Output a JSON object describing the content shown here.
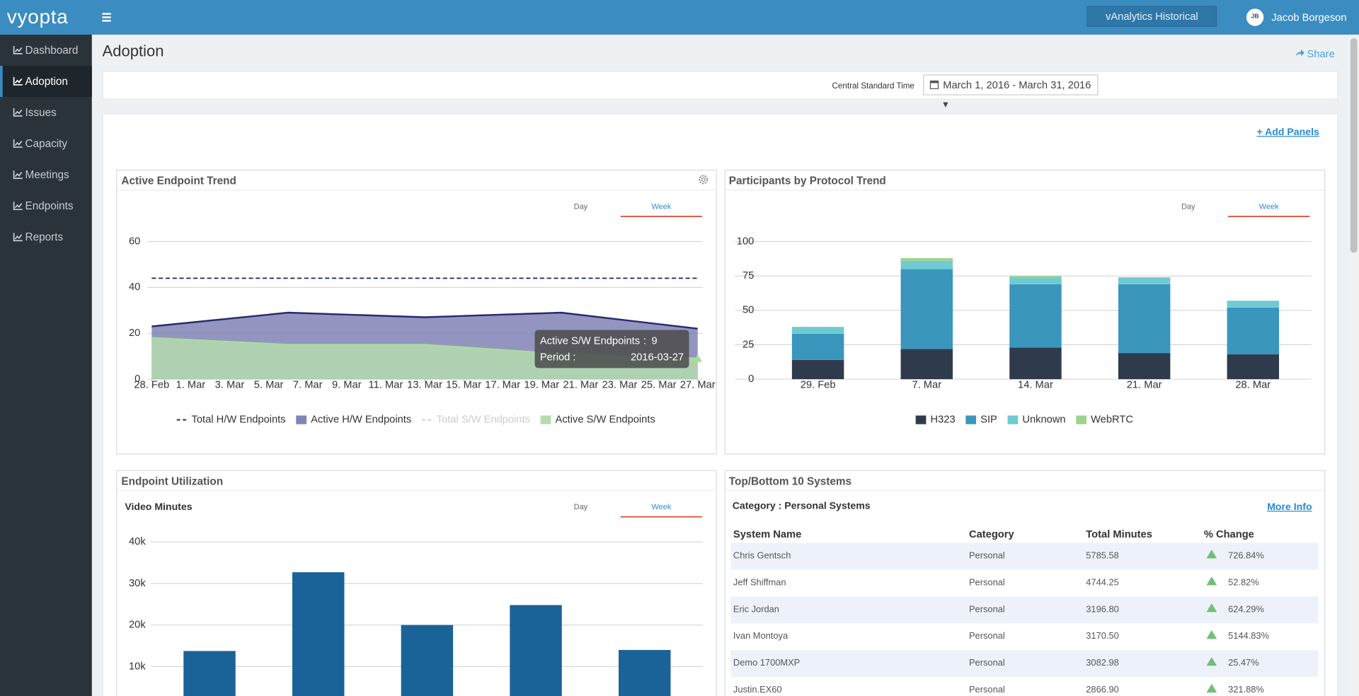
{
  "header": {
    "logo": "vyopta",
    "mode_button": "vAnalytics Historical",
    "user_initials": "JB",
    "user_name": "Jacob Borgeson"
  },
  "sidebar": {
    "items": [
      "Dashboard",
      "Adoption",
      "Issues",
      "Capacity",
      "Meetings",
      "Endpoints",
      "Reports"
    ],
    "active": 1
  },
  "page": {
    "title": "Adoption",
    "share": "Share",
    "timezone": "Central Standard Time",
    "date_range": "March 1, 2016 - March 31, 2016",
    "add_panels": "+ Add Panels"
  },
  "chart_data": [
    {
      "type": "area",
      "title": "Active Endpoint Trend",
      "tabs": [
        "Day",
        "Week"
      ],
      "active_tab": 1,
      "x": [
        "2016-02-28",
        "2016-03-06",
        "2016-03-13",
        "2016-03-20",
        "2016-03-27"
      ],
      "xlim": [
        "2016-02-28",
        "2016-03-27"
      ],
      "xticks": [
        {
          "value": "2016-02-28",
          "label": "28. Feb"
        },
        {
          "value": "2016-03-01",
          "label": "1. Mar"
        },
        {
          "value": "2016-03-03",
          "label": "3. Mar"
        },
        {
          "value": "2016-03-05",
          "label": "5. Mar"
        },
        {
          "value": "2016-03-07",
          "label": "7. Mar"
        },
        {
          "value": "2016-03-09",
          "label": "9. Mar"
        },
        {
          "value": "2016-03-11",
          "label": "11. Mar"
        },
        {
          "value": "2016-03-13",
          "label": "13. Mar"
        },
        {
          "value": "2016-03-15",
          "label": "15. Mar"
        },
        {
          "value": "2016-03-17",
          "label": "17. Mar"
        },
        {
          "value": "2016-03-19",
          "label": "19. Mar"
        },
        {
          "value": "2016-03-21",
          "label": "21. Mar"
        },
        {
          "value": "2016-03-23",
          "label": "23. Mar"
        },
        {
          "value": "2016-03-25",
          "label": "25. Mar"
        },
        {
          "value": "2016-03-27",
          "label": "27. Mar"
        }
      ],
      "ylim": [
        0,
        60
      ],
      "yticks": [
        0,
        20,
        40,
        60
      ],
      "grid": true,
      "series": [
        {
          "name": "Total H/W Endpoints",
          "color": "#1d2460",
          "style": "dashed",
          "values": [
            44,
            44,
            44,
            44,
            44
          ]
        },
        {
          "name": "Active H/W Endpoints",
          "color": "#8083b5",
          "line": "#262a6b",
          "style": "area",
          "values": [
            23,
            29,
            27,
            29,
            22
          ]
        },
        {
          "name": "Total S/W Endpoints",
          "color": "#cccccc",
          "style": "dashed",
          "hidden": true
        },
        {
          "name": "Active S/W Endpoints",
          "color": "#b5dcae",
          "line": "#a8dc9c",
          "style": "area",
          "values": [
            18,
            15,
            15,
            11,
            9
          ]
        }
      ],
      "tooltip": {
        "series": 3,
        "index": 4,
        "separator": ":",
        "period_label": "Period :"
      }
    },
    {
      "type": "stacked_bar",
      "title": "Participants by Protocol Trend",
      "tabs": [
        "Day",
        "Week"
      ],
      "active_tab": 1,
      "categories": [
        "29. Feb",
        "7. Mar",
        "14. Mar",
        "21. Mar",
        "28. Mar"
      ],
      "ylim": [
        0,
        100
      ],
      "yticks": [
        0,
        25,
        50,
        75,
        100
      ],
      "grid": true,
      "series": [
        {
          "name": "H323",
          "color": "#2f3b4c",
          "values": [
            14,
            22,
            23,
            19,
            18
          ]
        },
        {
          "name": "SIP",
          "color": "#3a96bd",
          "values": [
            19,
            58,
            46,
            50,
            34
          ]
        },
        {
          "name": "Unknown",
          "color": "#6fcbd1",
          "values": [
            5,
            6,
            5,
            5,
            5
          ]
        },
        {
          "name": "WebRTC",
          "color": "#9ed28e",
          "values": [
            0,
            2,
            1,
            0,
            0
          ]
        }
      ]
    },
    {
      "type": "bar",
      "title": "Endpoint Utilization",
      "subtitle": "Video Minutes",
      "tabs": [
        "Day",
        "Week"
      ],
      "active_tab": 1,
      "categories": [
        null,
        null,
        null,
        null,
        null
      ],
      "values": [
        13750,
        32700,
        20000,
        24800,
        14000
      ],
      "color": "#1a6398",
      "ylim": [
        0,
        40000
      ],
      "yticks": [
        {
          "value": 10000,
          "label": "10k"
        },
        {
          "value": 20000,
          "label": "20k"
        },
        {
          "value": 30000,
          "label": "30k"
        },
        {
          "value": 40000,
          "label": "40k"
        }
      ],
      "grid": true
    }
  ],
  "table_panel": {
    "title": "Top/Bottom 10 Systems",
    "category": "Category : Personal Systems",
    "more_info": "More Info",
    "columns": [
      "System Name",
      "Category",
      "Total Minutes",
      "% Change"
    ],
    "rows": [
      [
        "Chris Gentsch",
        "Personal",
        "5785.58",
        "726.84%"
      ],
      [
        "Jeff Shiffman",
        "Personal",
        "4744.25",
        "52.82%"
      ],
      [
        "Eric Jordan",
        "Personal",
        "3196.80",
        "624.29%"
      ],
      [
        "Ivan Montoya",
        "Personal",
        "3170.50",
        "5144.83%"
      ],
      [
        "Demo 1700MXP",
        "Personal",
        "3082.98",
        "25.47%"
      ],
      [
        "Justin.EX60",
        "Personal",
        "2866.90",
        "321.88%"
      ]
    ]
  }
}
